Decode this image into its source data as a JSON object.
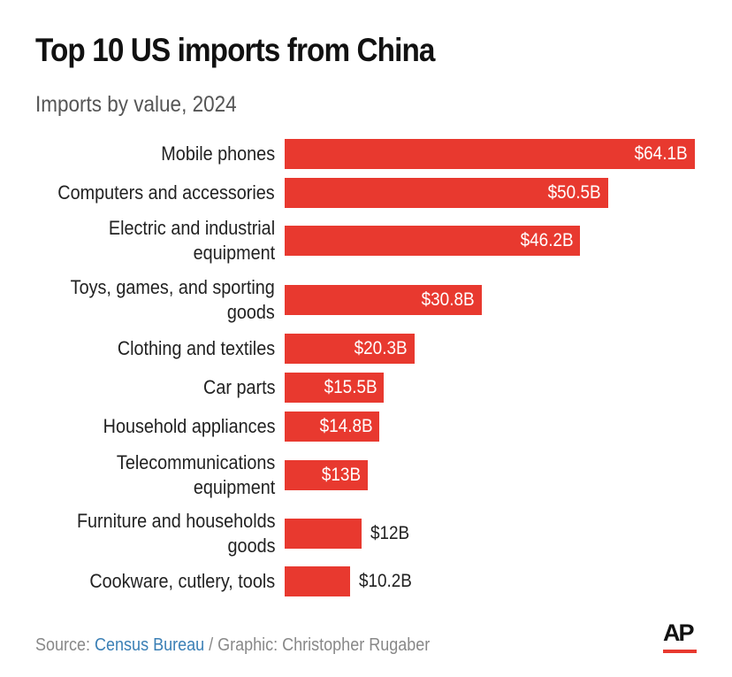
{
  "colors": {
    "bar": "#e8392f",
    "source_link": "#3a7fb5"
  },
  "chart_data": {
    "type": "bar",
    "orientation": "horizontal",
    "title": "Top 10 US imports from China",
    "subtitle": "Imports by value, 2024",
    "categories": [
      "Mobile phones",
      "Computers and accessories",
      "Electric and industrial equipment",
      "Toys, games, and sporting goods",
      "Clothing and textiles",
      "Car parts",
      "Household appliances",
      "Telecommunications equipment",
      "Furniture and households goods",
      "Cookware, cutlery, tools"
    ],
    "label_lines": [
      [
        "Mobile phones"
      ],
      [
        "Computers and accessories"
      ],
      [
        "Electric and industrial",
        "equipment"
      ],
      [
        "Toys, games, and sporting",
        "goods"
      ],
      [
        "Clothing and textiles"
      ],
      [
        "Car parts"
      ],
      [
        "Household appliances"
      ],
      [
        "Telecommunications",
        "equipment"
      ],
      [
        "Furniture and households",
        "goods"
      ],
      [
        "Cookware, cutlery, tools"
      ]
    ],
    "values": [
      64.1,
      50.5,
      46.2,
      30.8,
      20.3,
      15.5,
      14.8,
      13,
      12,
      10.2
    ],
    "data_labels": [
      "$64.1B",
      "$50.5B",
      "$46.2B",
      "$30.8B",
      "$20.3B",
      "$15.5B",
      "$14.8B",
      "$13B",
      "$12B",
      "$10.2B"
    ],
    "unit": "billion USD",
    "xlim": [
      0,
      64.1
    ],
    "grid": false
  },
  "footer": {
    "source_prefix": "Source: ",
    "source_name": "Census Bureau",
    "credit": " / Graphic: Christopher Rugaber"
  },
  "logo": "AP"
}
